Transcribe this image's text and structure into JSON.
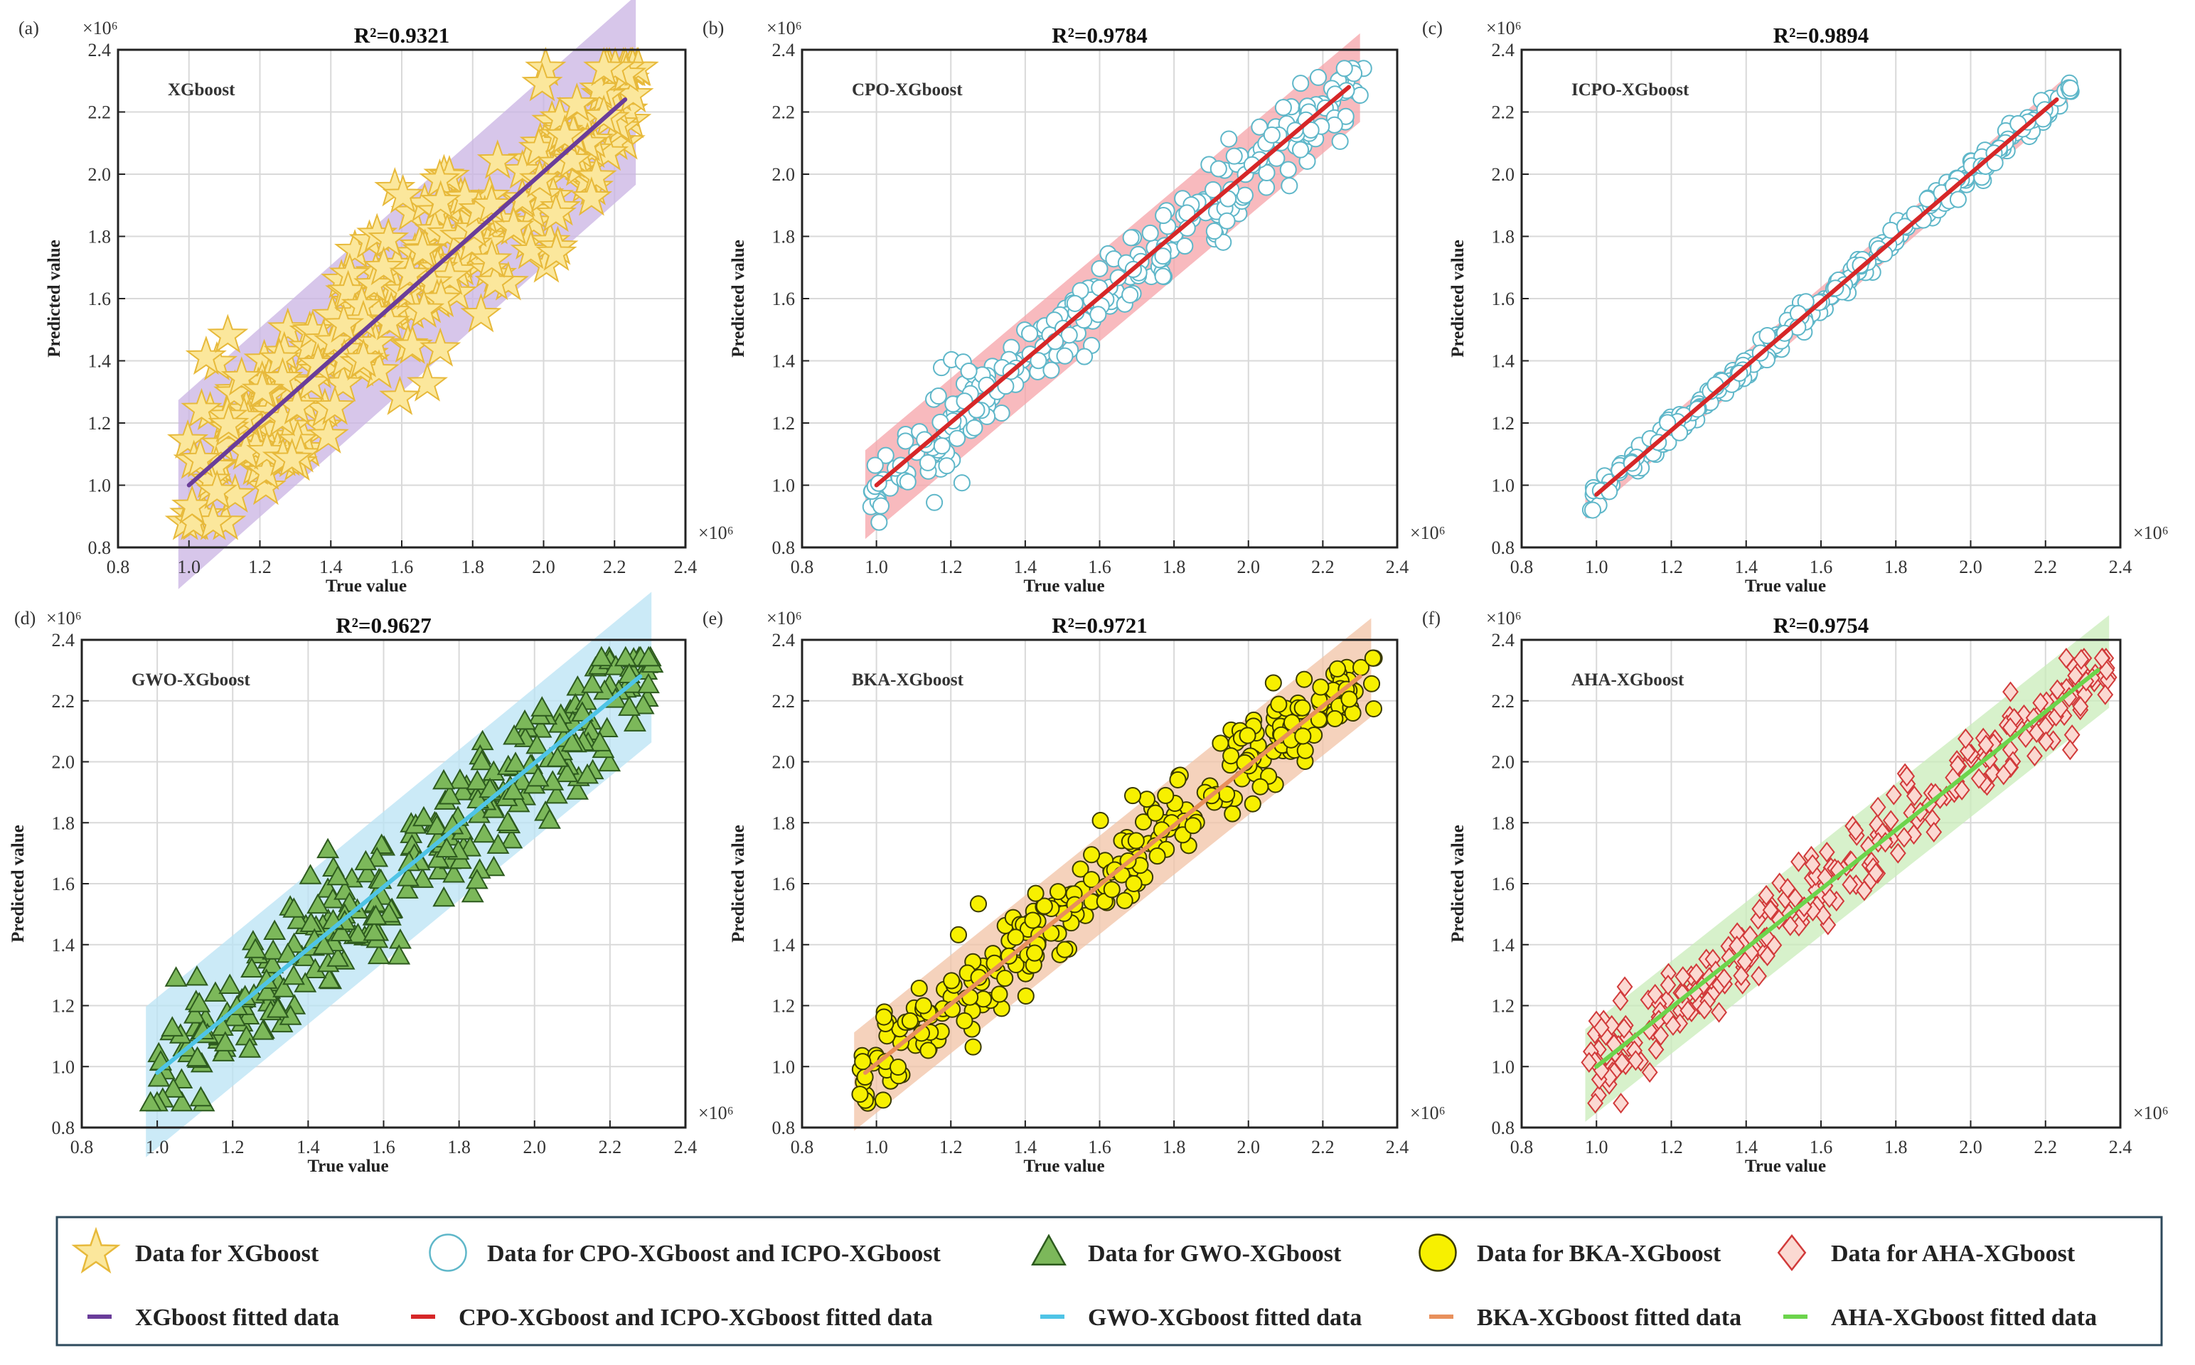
{
  "x_axis_label": "True value",
  "y_axis_label": "Predicted value",
  "exponent_label": "×10⁶",
  "chart_data": [
    {
      "type": "scatter",
      "panel": "(a)",
      "title": "R²=0.9321",
      "model": "XGboost",
      "r2": 0.9321,
      "marker": "star",
      "marker_fill": "#fbe79c",
      "marker_stroke": "#e7b93a",
      "fit_color": "#6a3d9a",
      "band_color": "#c9b3e3",
      "noise": 0.16,
      "xlim": [
        0.8,
        2.4
      ],
      "ylim": [
        0.8,
        2.4
      ],
      "fit": [
        [
          1.0,
          1.0
        ],
        [
          2.23,
          2.24
        ]
      ],
      "xticks": [
        0.8,
        1.0,
        1.2,
        1.4,
        1.6,
        1.8,
        2.0,
        2.2,
        2.4
      ],
      "yticks": [
        0.8,
        1.0,
        1.2,
        1.4,
        1.6,
        1.8,
        2.0,
        2.2,
        2.4
      ],
      "xlabel": "True value",
      "ylabel": "Predicted value",
      "scale": "×10⁶"
    },
    {
      "type": "scatter",
      "panel": "(b)",
      "title": "R²=0.9784",
      "model": "CPO-XGboost",
      "r2": 0.9784,
      "marker": "circle",
      "marker_fill": "#ffffff",
      "marker_stroke": "#5fb7c9",
      "fit_color": "#d62728",
      "band_color": "#f5a3a8",
      "noise": 0.075,
      "xlim": [
        0.8,
        2.4
      ],
      "ylim": [
        0.8,
        2.4
      ],
      "fit": [
        [
          1.0,
          1.0
        ],
        [
          2.27,
          2.28
        ]
      ],
      "xticks": [
        0.8,
        1.0,
        1.2,
        1.4,
        1.6,
        1.8,
        2.0,
        2.2,
        2.4
      ],
      "yticks": [
        0.8,
        1.0,
        1.2,
        1.4,
        1.6,
        1.8,
        2.0,
        2.2,
        2.4
      ],
      "xlabel": "True value",
      "ylabel": "Predicted value",
      "scale": "×10⁶"
    },
    {
      "type": "scatter",
      "panel": "(c)",
      "title": "R²=0.9894",
      "model": "ICPO-XGboost",
      "r2": 0.9894,
      "marker": "circle",
      "marker_fill": "#ffffff",
      "marker_stroke": "#5fb7c9",
      "fit_color": "#d62728",
      "band_color": "#f5a3a8",
      "noise": 0.025,
      "xlim": [
        0.8,
        2.4
      ],
      "ylim": [
        0.8,
        2.4
      ],
      "fit": [
        [
          1.0,
          0.97
        ],
        [
          2.23,
          2.24
        ]
      ],
      "xticks": [
        0.8,
        1.0,
        1.2,
        1.4,
        1.6,
        1.8,
        2.0,
        2.2,
        2.4
      ],
      "yticks": [
        0.8,
        1.0,
        1.2,
        1.4,
        1.6,
        1.8,
        2.0,
        2.2,
        2.4
      ],
      "xlabel": "True value",
      "ylabel": "Predicted value",
      "scale": "×10⁶"
    },
    {
      "type": "scatter",
      "panel": "(d)",
      "title": "R²=0.9627",
      "model": "GWO-XGboost",
      "r2": 0.9627,
      "marker": "triangle",
      "marker_fill": "#7cb85a",
      "marker_stroke": "#2d5a1e",
      "fit_color": "#4fc4e6",
      "band_color": "#b9e3f4",
      "noise": 0.13,
      "xlim": [
        0.8,
        2.4
      ],
      "ylim": [
        0.8,
        2.4
      ],
      "fit": [
        [
          1.0,
          0.98
        ],
        [
          2.28,
          2.28
        ]
      ],
      "xticks": [
        0.8,
        1.0,
        1.2,
        1.4,
        1.6,
        1.8,
        2.0,
        2.2,
        2.4
      ],
      "yticks": [
        0.8,
        1.0,
        1.2,
        1.4,
        1.6,
        1.8,
        2.0,
        2.2,
        2.4
      ],
      "xlabel": "True value",
      "ylabel": "Predicted value",
      "scale": "×10⁶"
    },
    {
      "type": "scatter",
      "panel": "(e)",
      "title": "R²=0.9721",
      "model": "BKA-XGboost",
      "r2": 0.9721,
      "marker": "circle",
      "marker_fill": "#f7f000",
      "marker_stroke": "#3a3a00",
      "fit_color": "#e8905c",
      "band_color": "#f2c3a6",
      "noise": 0.085,
      "xlim": [
        0.8,
        2.4
      ],
      "ylim": [
        0.8,
        2.4
      ],
      "fit": [
        [
          0.97,
          0.98
        ],
        [
          2.3,
          2.28
        ]
      ],
      "xticks": [
        0.8,
        1.0,
        1.2,
        1.4,
        1.6,
        1.8,
        2.0,
        2.2,
        2.4
      ],
      "yticks": [
        0.8,
        1.0,
        1.2,
        1.4,
        1.6,
        1.8,
        2.0,
        2.2,
        2.4
      ],
      "xlabel": "True value",
      "ylabel": "Predicted value",
      "scale": "×10⁶"
    },
    {
      "type": "scatter",
      "panel": "(f)",
      "title": "R²=0.9754",
      "model": "AHA-XGboost",
      "r2": 0.9754,
      "marker": "diamond",
      "marker_fill": "#fbd9d2",
      "marker_stroke": "#d13a3a",
      "fit_color": "#6cd44c",
      "band_color": "#c9ecb9",
      "noise": 0.08,
      "xlim": [
        0.8,
        2.4
      ],
      "ylim": [
        0.8,
        2.4
      ],
      "fit": [
        [
          1.0,
          1.0
        ],
        [
          2.34,
          2.3
        ]
      ],
      "xticks": [
        0.8,
        1.0,
        1.2,
        1.4,
        1.6,
        1.8,
        2.0,
        2.2,
        2.4
      ],
      "yticks": [
        0.8,
        1.0,
        1.2,
        1.4,
        1.6,
        1.8,
        2.0,
        2.2,
        2.4
      ],
      "xlabel": "True value",
      "ylabel": "Predicted value",
      "scale": "×10⁶"
    }
  ],
  "legend": {
    "placement": "bottom",
    "row1": [
      {
        "marker": "star",
        "fill": "#fbe79c",
        "stroke": "#e7b93a",
        "label": "Data for XGboost"
      },
      {
        "marker": "circle",
        "fill": "#ffffff",
        "stroke": "#5fb7c9",
        "label": "Data for CPO-XGboost and ICPO-XGboost"
      },
      {
        "marker": "triangle",
        "fill": "#7cb85a",
        "stroke": "#2d5a1e",
        "label": "Data for GWO-XGboost"
      },
      {
        "marker": "circle",
        "fill": "#f7f000",
        "stroke": "#3a3a00",
        "label": "Data for BKA-XGboost"
      },
      {
        "marker": "diamond",
        "fill": "#fbd9d2",
        "stroke": "#d13a3a",
        "label": "Data for AHA-XGboost"
      }
    ],
    "row2": [
      {
        "color": "#6a3d9a",
        "label": "XGboost fitted data"
      },
      {
        "color": "#d62728",
        "label": "CPO-XGboost and ICPO-XGboost fitted data"
      },
      {
        "color": "#4fc4e6",
        "label": "GWO-XGboost fitted data"
      },
      {
        "color": "#e8905c",
        "label": "BKA-XGboost fitted data"
      },
      {
        "color": "#6cd44c",
        "label": "AHA-XGboost fitted data"
      }
    ]
  }
}
